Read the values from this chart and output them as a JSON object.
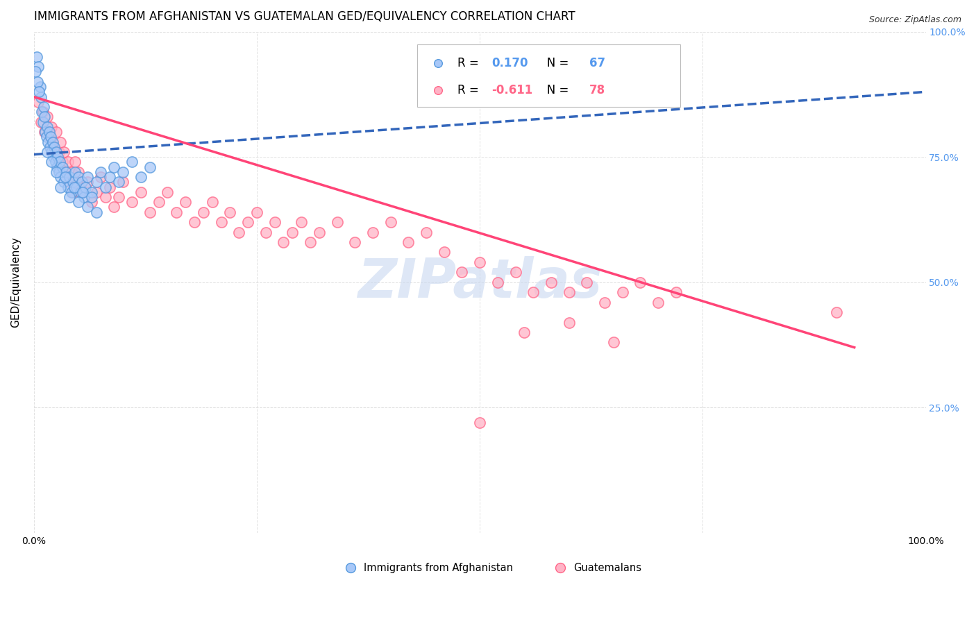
{
  "title": "IMMIGRANTS FROM AFGHANISTAN VS GUATEMALAN GED/EQUIVALENCY CORRELATION CHART",
  "source": "Source: ZipAtlas.com",
  "ylabel": "GED/Equivalency",
  "r_afghanistan": 0.17,
  "n_afghanistan": 67,
  "r_guatemalan": -0.611,
  "n_guatemalan": 78,
  "color_afghanistan_fill": "#a8c8f8",
  "color_afghanistan_edge": "#5599dd",
  "color_afghanistan_line": "#3366bb",
  "color_guatemalan_fill": "#ffb3c6",
  "color_guatemalan_edge": "#ff6688",
  "color_guatemalan_line": "#ff4477",
  "watermark": "ZIPatlas",
  "watermark_color": "#c8d8f0",
  "xlim": [
    0.0,
    1.0
  ],
  "ylim": [
    0.0,
    1.0
  ],
  "background_color": "#ffffff",
  "grid_color": "#dddddd",
  "title_fontsize": 12,
  "axis_label_fontsize": 11,
  "tick_fontsize": 10,
  "right_tick_color": "#5599ee",
  "afghanistan_scatter": [
    [
      0.003,
      0.95
    ],
    [
      0.005,
      0.93
    ],
    [
      0.007,
      0.89
    ],
    [
      0.008,
      0.87
    ],
    [
      0.009,
      0.84
    ],
    [
      0.01,
      0.82
    ],
    [
      0.011,
      0.85
    ],
    [
      0.012,
      0.83
    ],
    [
      0.013,
      0.8
    ],
    [
      0.014,
      0.79
    ],
    [
      0.015,
      0.81
    ],
    [
      0.016,
      0.78
    ],
    [
      0.017,
      0.8
    ],
    [
      0.018,
      0.77
    ],
    [
      0.019,
      0.79
    ],
    [
      0.02,
      0.76
    ],
    [
      0.021,
      0.78
    ],
    [
      0.022,
      0.75
    ],
    [
      0.023,
      0.77
    ],
    [
      0.024,
      0.74
    ],
    [
      0.025,
      0.76
    ],
    [
      0.026,
      0.73
    ],
    [
      0.027,
      0.75
    ],
    [
      0.028,
      0.72
    ],
    [
      0.029,
      0.74
    ],
    [
      0.03,
      0.71
    ],
    [
      0.032,
      0.73
    ],
    [
      0.034,
      0.7
    ],
    [
      0.036,
      0.72
    ],
    [
      0.038,
      0.69
    ],
    [
      0.04,
      0.71
    ],
    [
      0.042,
      0.68
    ],
    [
      0.044,
      0.7
    ],
    [
      0.046,
      0.72
    ],
    [
      0.048,
      0.69
    ],
    [
      0.05,
      0.71
    ],
    [
      0.052,
      0.68
    ],
    [
      0.054,
      0.7
    ],
    [
      0.056,
      0.67
    ],
    [
      0.058,
      0.69
    ],
    [
      0.06,
      0.71
    ],
    [
      0.065,
      0.68
    ],
    [
      0.07,
      0.7
    ],
    [
      0.075,
      0.72
    ],
    [
      0.08,
      0.69
    ],
    [
      0.085,
      0.71
    ],
    [
      0.09,
      0.73
    ],
    [
      0.095,
      0.7
    ],
    [
      0.1,
      0.72
    ],
    [
      0.11,
      0.74
    ],
    [
      0.12,
      0.71
    ],
    [
      0.13,
      0.73
    ],
    [
      0.002,
      0.92
    ],
    [
      0.004,
      0.9
    ],
    [
      0.006,
      0.88
    ],
    [
      0.015,
      0.76
    ],
    [
      0.02,
      0.74
    ],
    [
      0.025,
      0.72
    ],
    [
      0.03,
      0.69
    ],
    [
      0.035,
      0.71
    ],
    [
      0.04,
      0.67
    ],
    [
      0.045,
      0.69
    ],
    [
      0.05,
      0.66
    ],
    [
      0.055,
      0.68
    ],
    [
      0.06,
      0.65
    ],
    [
      0.065,
      0.67
    ],
    [
      0.07,
      0.64
    ]
  ],
  "guatemalan_scatter": [
    [
      0.005,
      0.86
    ],
    [
      0.008,
      0.82
    ],
    [
      0.01,
      0.84
    ],
    [
      0.012,
      0.8
    ],
    [
      0.015,
      0.83
    ],
    [
      0.018,
      0.79
    ],
    [
      0.02,
      0.81
    ],
    [
      0.022,
      0.77
    ],
    [
      0.025,
      0.8
    ],
    [
      0.028,
      0.76
    ],
    [
      0.03,
      0.78
    ],
    [
      0.032,
      0.74
    ],
    [
      0.034,
      0.76
    ],
    [
      0.036,
      0.72
    ],
    [
      0.038,
      0.74
    ],
    [
      0.04,
      0.7
    ],
    [
      0.042,
      0.72
    ],
    [
      0.044,
      0.68
    ],
    [
      0.046,
      0.74
    ],
    [
      0.048,
      0.7
    ],
    [
      0.05,
      0.72
    ],
    [
      0.055,
      0.68
    ],
    [
      0.06,
      0.7
    ],
    [
      0.065,
      0.66
    ],
    [
      0.07,
      0.68
    ],
    [
      0.075,
      0.71
    ],
    [
      0.08,
      0.67
    ],
    [
      0.085,
      0.69
    ],
    [
      0.09,
      0.65
    ],
    [
      0.095,
      0.67
    ],
    [
      0.1,
      0.7
    ],
    [
      0.11,
      0.66
    ],
    [
      0.12,
      0.68
    ],
    [
      0.13,
      0.64
    ],
    [
      0.14,
      0.66
    ],
    [
      0.15,
      0.68
    ],
    [
      0.16,
      0.64
    ],
    [
      0.17,
      0.66
    ],
    [
      0.18,
      0.62
    ],
    [
      0.19,
      0.64
    ],
    [
      0.2,
      0.66
    ],
    [
      0.21,
      0.62
    ],
    [
      0.22,
      0.64
    ],
    [
      0.23,
      0.6
    ],
    [
      0.24,
      0.62
    ],
    [
      0.25,
      0.64
    ],
    [
      0.26,
      0.6
    ],
    [
      0.27,
      0.62
    ],
    [
      0.28,
      0.58
    ],
    [
      0.29,
      0.6
    ],
    [
      0.3,
      0.62
    ],
    [
      0.31,
      0.58
    ],
    [
      0.32,
      0.6
    ],
    [
      0.34,
      0.62
    ],
    [
      0.36,
      0.58
    ],
    [
      0.38,
      0.6
    ],
    [
      0.4,
      0.62
    ],
    [
      0.42,
      0.58
    ],
    [
      0.44,
      0.6
    ],
    [
      0.46,
      0.56
    ],
    [
      0.48,
      0.52
    ],
    [
      0.5,
      0.54
    ],
    [
      0.52,
      0.5
    ],
    [
      0.54,
      0.52
    ],
    [
      0.56,
      0.48
    ],
    [
      0.58,
      0.5
    ],
    [
      0.6,
      0.48
    ],
    [
      0.62,
      0.5
    ],
    [
      0.64,
      0.46
    ],
    [
      0.66,
      0.48
    ],
    [
      0.68,
      0.5
    ],
    [
      0.7,
      0.46
    ],
    [
      0.72,
      0.48
    ],
    [
      0.5,
      0.22
    ],
    [
      0.55,
      0.4
    ],
    [
      0.6,
      0.42
    ],
    [
      0.65,
      0.38
    ],
    [
      0.9,
      0.44
    ]
  ],
  "afg_line_x": [
    0.0,
    1.0
  ],
  "afg_line_y": [
    0.755,
    0.88
  ],
  "guat_line_x": [
    0.0,
    0.92
  ],
  "guat_line_y": [
    0.87,
    0.37
  ]
}
